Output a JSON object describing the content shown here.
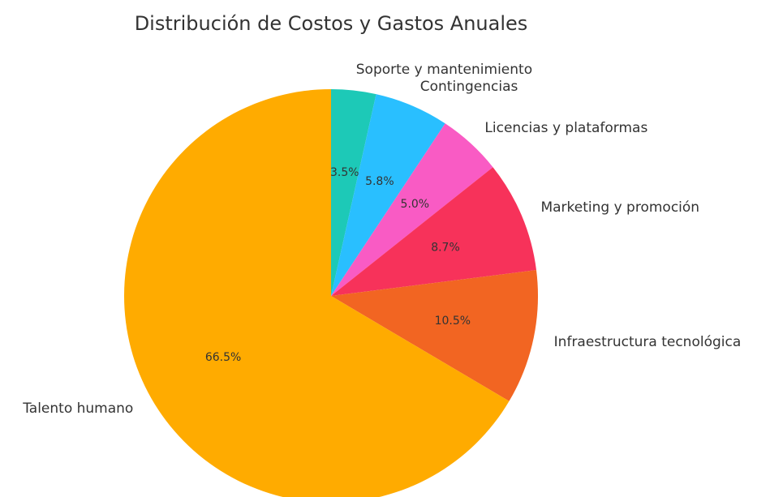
{
  "chart_data": {
    "type": "pie",
    "title": "Distribución de Costos y Gastos Anuales",
    "categories": [
      "Soporte y mantenimiento",
      "Contingencias",
      "Licencias y plataformas",
      "Marketing y promoción",
      "Infraestructura tecnológica",
      "Talento humano"
    ],
    "values": [
      3.5,
      5.8,
      5.0,
      8.7,
      10.5,
      66.5
    ],
    "value_labels": [
      "3.5%",
      "5.8%",
      "5.0%",
      "8.7%",
      "10.5%",
      "66.5%"
    ],
    "colors": [
      "#1dc9b7",
      "#29bfff",
      "#f95bc4",
      "#f7325a",
      "#f26522",
      "#ffab00"
    ]
  }
}
